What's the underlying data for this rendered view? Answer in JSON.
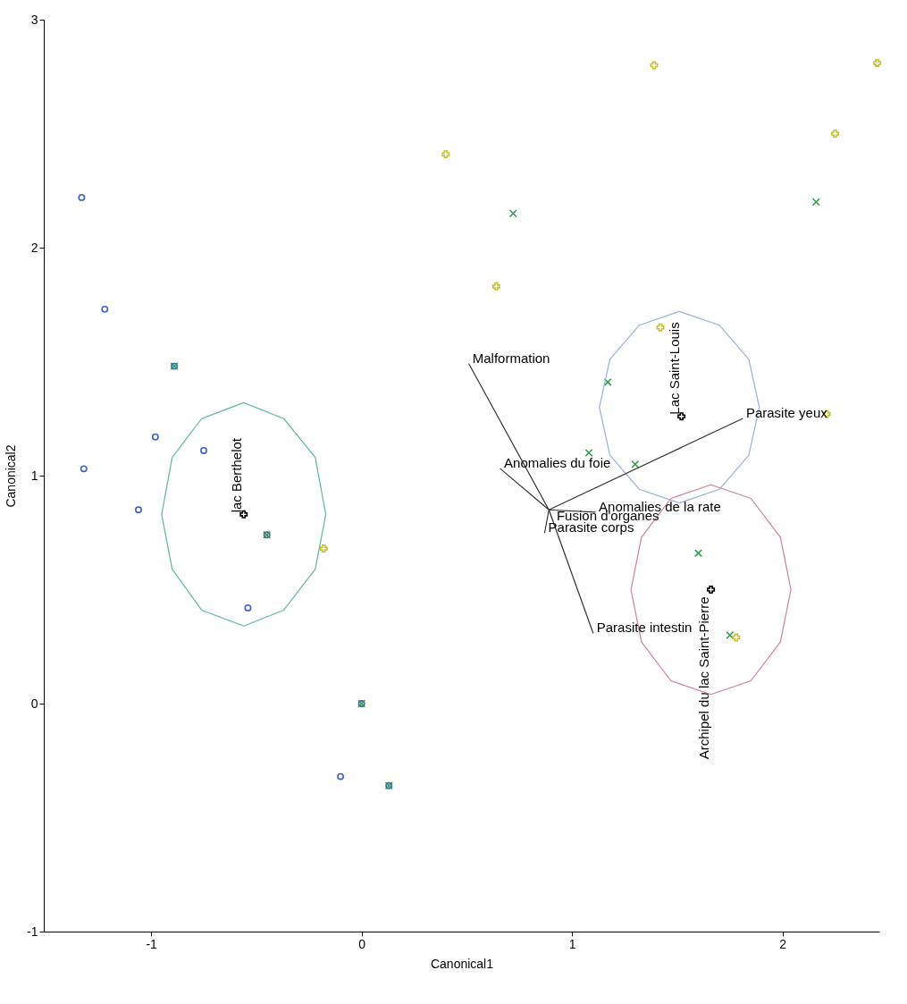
{
  "chart_data": {
    "type": "scatter",
    "xlabel": "Canonical1",
    "ylabel": "Canonical2",
    "xlim": [
      -1.51,
      2.46
    ],
    "ylim": [
      -1,
      3
    ],
    "xticks": [
      -1,
      0,
      1,
      2
    ],
    "yticks": [
      -1,
      0,
      1,
      2,
      3
    ],
    "grid": false,
    "series": [
      {
        "color": "#3a5fcd",
        "marker": "circle",
        "x": [
          -1.33,
          -1.22,
          -0.89,
          -0.98,
          -1.32,
          -0.75,
          -1.06,
          -0.54,
          -0.45,
          0,
          -0.1,
          0.13
        ],
        "values": [
          2.22,
          1.73,
          1.48,
          1.17,
          1.03,
          1.11,
          0.85,
          0.42,
          0.74,
          0,
          -0.32,
          -0.36
        ]
      },
      {
        "color": "#2e9a4a",
        "marker": "cross",
        "x": [
          0.72,
          2.16,
          1.17,
          1.08,
          1.3,
          1.6,
          1.75,
          -0.89,
          -0.45,
          0,
          0.13
        ],
        "values": [
          2.15,
          2.2,
          1.41,
          1.1,
          1.05,
          0.66,
          0.3,
          1.48,
          0.74,
          0,
          -0.36
        ]
      },
      {
        "color": "#c8c030",
        "marker": "plus",
        "x": [
          0.4,
          1.39,
          2.45,
          2.25,
          0.64,
          1.42,
          2.21,
          -0.18,
          1.78
        ],
        "values": [
          2.41,
          2.8,
          2.81,
          2.5,
          1.83,
          1.65,
          1.27,
          0.68,
          0.29
        ]
      },
      {
        "name": "lac Berthelot",
        "color": "#000000",
        "marker": "plus",
        "x": [
          -0.56
        ],
        "values": [
          0.83
        ]
      },
      {
        "name": "Lac Saint-Louis",
        "color": "#000000",
        "marker": "plus",
        "x": [
          1.52
        ],
        "values": [
          1.26
        ]
      },
      {
        "name": "Archipel du lac Saint-Pierre",
        "color": "#000000",
        "marker": "plus",
        "x": [
          1.66
        ],
        "values": [
          0.5
        ]
      },
      {
        "type": "line",
        "color": "#5fb8a0",
        "x": [
          -0.95,
          -0.9,
          -0.76,
          -0.56,
          -0.37,
          -0.22,
          -0.17,
          null,
          -0.95,
          -0.9,
          -0.76,
          -0.56,
          -0.37,
          -0.22,
          -0.17
        ],
        "values": [
          0.83,
          1.08,
          1.25,
          1.32,
          1.25,
          1.08,
          0.83,
          null,
          0.83,
          0.59,
          0.41,
          0.34,
          0.41,
          0.59,
          0.83
        ]
      },
      {
        "type": "line",
        "color": "#9ab0e0",
        "x": [
          1.13,
          1.18,
          1.32,
          1.51,
          1.7,
          1.84,
          1.89,
          null,
          1.13,
          1.18,
          1.32,
          1.51,
          1.7,
          1.84,
          1.89
        ],
        "values": [
          1.3,
          1.51,
          1.66,
          1.72,
          1.66,
          1.51,
          1.3,
          null,
          1.3,
          1.09,
          0.94,
          0.88,
          0.94,
          1.09,
          1.3
        ]
      },
      {
        "type": "line",
        "color": "#d08090",
        "x": [
          1.28,
          1.33,
          1.47,
          1.66,
          1.85,
          1.99,
          2.04,
          null,
          1.28,
          1.33,
          1.47,
          1.66,
          1.85,
          1.99,
          2.04
        ],
        "values": [
          0.5,
          0.73,
          0.9,
          0.96,
          0.9,
          0.73,
          0.5,
          null,
          0.5,
          0.27,
          0.1,
          0.04,
          0.1,
          0.27,
          0.5
        ]
      },
      {
        "type": "line",
        "color": "#333333",
        "x": [
          0.89,
          1.11,
          null,
          0.89,
          0.51,
          null,
          0.89,
          0.66,
          null,
          0.89,
          0.91,
          null,
          0.89,
          0.87,
          null,
          0.89,
          1.1,
          null,
          0.89,
          1.81
        ],
        "values": [
          0.85,
          0.84,
          null,
          0.85,
          1.49,
          null,
          0.85,
          1.03,
          null,
          0.85,
          0.8,
          null,
          0.85,
          0.75,
          null,
          0.85,
          0.31,
          null,
          0.85,
          1.25
        ]
      }
    ],
    "annotations": [
      {
        "text": "Malformation",
        "x": 0.51,
        "y": 1.49
      },
      {
        "text": "Anomalies du foie",
        "x": 0.66,
        "y": 1.03
      },
      {
        "text": "Parasite yeux",
        "x": 1.81,
        "y": 1.25
      },
      {
        "text": "Parasite intestin",
        "x": 1.1,
        "y": 0.31
      },
      {
        "text": "Fusion d'organes",
        "x": 0.91,
        "y": 0.8
      },
      {
        "text": "Parasite corps",
        "x": 0.87,
        "y": 0.75
      },
      {
        "text": "Anomalies de la rate",
        "x": 1.11,
        "y": 0.84
      }
    ]
  }
}
